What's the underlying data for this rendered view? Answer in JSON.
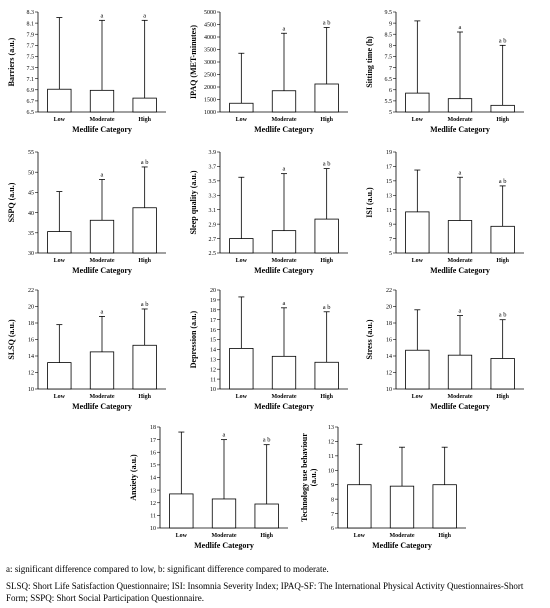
{
  "chart_data": [
    {
      "type": "bar",
      "title": "",
      "xlabel": "Medlife Category",
      "ylabel": "Barriers (a.u.)",
      "categories": [
        "Low",
        "Moderate",
        "High"
      ],
      "values": [
        6.91,
        6.89,
        6.75
      ],
      "error_upper": [
        8.2,
        8.15,
        8.15
      ],
      "ylim": [
        6.5,
        8.3
      ],
      "yticks": [
        "6.5",
        "6.7",
        "6.9",
        "7.1",
        "7.3",
        "7.5",
        "7.7",
        "7.9",
        "8.1",
        "8.3"
      ],
      "sig": [
        "",
        "a",
        "a"
      ]
    },
    {
      "type": "bar",
      "title": "",
      "xlabel": "Medlife Category",
      "ylabel": "IPAQ (MET-minutes)",
      "categories": [
        "Low",
        "Moderate",
        "High"
      ],
      "values": [
        1350,
        1850,
        2120
      ],
      "error_upper": [
        3350,
        4150,
        4380
      ],
      "ylim": [
        1000,
        5000
      ],
      "yticks": [
        "1000",
        "1500",
        "2000",
        "2500",
        "3000",
        "3500",
        "4000",
        "4500",
        "5000"
      ],
      "sig": [
        "",
        "a",
        "a b"
      ]
    },
    {
      "type": "bar",
      "title": "",
      "xlabel": "Medlife Category",
      "ylabel": "Sitting time (h)",
      "categories": [
        "Low",
        "Moderate",
        "High"
      ],
      "values": [
        5.85,
        5.6,
        5.3
      ],
      "error_upper": [
        9.1,
        8.6,
        8.0
      ],
      "ylim": [
        5,
        9.5
      ],
      "yticks": [
        "5",
        "5.5",
        "6",
        "6.5",
        "7",
        "7.5",
        "8",
        "8.5",
        "9",
        "9.5"
      ],
      "sig": [
        "",
        "a",
        "a b"
      ]
    },
    {
      "type": "bar",
      "title": "",
      "xlabel": "Medlife Category",
      "ylabel": "SSPQ (a.u.)",
      "categories": [
        "Low",
        "Moderate",
        "High"
      ],
      "values": [
        35.3,
        38.1,
        41.2
      ],
      "error_upper": [
        45.2,
        48.2,
        51.3
      ],
      "ylim": [
        30,
        55
      ],
      "yticks": [
        "30",
        "35",
        "40",
        "45",
        "50",
        "55"
      ],
      "sig": [
        "",
        "a",
        "a b"
      ]
    },
    {
      "type": "bar",
      "title": "",
      "xlabel": "Medlife Category",
      "ylabel": "Sleep quality (a.u.)",
      "categories": [
        "Low",
        "Moderate",
        "High"
      ],
      "values": [
        2.7,
        2.81,
        2.97
      ],
      "error_upper": [
        3.55,
        3.6,
        3.67
      ],
      "ylim": [
        2.5,
        3.9
      ],
      "yticks": [
        "2.5",
        "2.7",
        "2.9",
        "3.1",
        "3.3",
        "3.5",
        "3.7",
        "3.9"
      ],
      "sig": [
        "",
        "a",
        "a b"
      ]
    },
    {
      "type": "bar",
      "title": "",
      "xlabel": "Medlife Category",
      "ylabel": "ISI (a.u.)",
      "categories": [
        "Low",
        "Moderate",
        "High"
      ],
      "values": [
        10.7,
        9.5,
        8.7
      ],
      "error_upper": [
        16.5,
        15.5,
        14.3
      ],
      "ylim": [
        5,
        19
      ],
      "yticks": [
        "5",
        "7",
        "9",
        "11",
        "13",
        "15",
        "17",
        "19"
      ],
      "sig": [
        "",
        "a",
        "a b"
      ]
    },
    {
      "type": "bar",
      "title": "",
      "xlabel": "Medlife Category",
      "ylabel": "SLSQ (a.u.)",
      "categories": [
        "Low",
        "Moderate",
        "High"
      ],
      "values": [
        13.2,
        14.5,
        15.3
      ],
      "error_upper": [
        17.8,
        18.8,
        19.7
      ],
      "ylim": [
        10,
        22
      ],
      "yticks": [
        "10",
        "12",
        "14",
        "16",
        "18",
        "20",
        "22"
      ],
      "sig": [
        "",
        "a",
        "a b"
      ]
    },
    {
      "type": "bar",
      "title": "",
      "xlabel": "Medlife Category",
      "ylabel": "Depression (a.u.)",
      "categories": [
        "Low",
        "Moderate",
        "High"
      ],
      "values": [
        14.1,
        13.3,
        12.7
      ],
      "error_upper": [
        19.3,
        18.2,
        17.8
      ],
      "ylim": [
        10,
        20
      ],
      "yticks": [
        "10",
        "11",
        "12",
        "13",
        "14",
        "15",
        "16",
        "17",
        "18",
        "19",
        "20"
      ],
      "sig": [
        "",
        "a",
        "a b"
      ]
    },
    {
      "type": "bar",
      "title": "",
      "xlabel": "Medlife Category",
      "ylabel": "Stress (a.u.)",
      "categories": [
        "Low",
        "Moderate",
        "High"
      ],
      "values": [
        14.7,
        14.1,
        13.7
      ],
      "error_upper": [
        19.6,
        18.9,
        18.4
      ],
      "ylim": [
        10,
        22
      ],
      "yticks": [
        "10",
        "12",
        "14",
        "16",
        "18",
        "20",
        "22"
      ],
      "sig": [
        "",
        "a",
        "a b"
      ]
    },
    {
      "type": "bar",
      "title": "",
      "xlabel": "Medlife Category",
      "ylabel": "Anxiety (a.u.)",
      "categories": [
        "Low",
        "Moderate",
        "High"
      ],
      "values": [
        12.7,
        12.3,
        11.9
      ],
      "error_upper": [
        17.6,
        17.0,
        16.6
      ],
      "ylim": [
        10,
        18
      ],
      "yticks": [
        "10",
        "11",
        "12",
        "13",
        "14",
        "15",
        "16",
        "17",
        "18"
      ],
      "sig": [
        "",
        "a",
        "a b"
      ]
    },
    {
      "type": "bar",
      "title": "",
      "xlabel": "Medlife Category",
      "ylabel": "Technology use behaviour (a.u.)",
      "categories": [
        "Low",
        "Moderate",
        "High"
      ],
      "values": [
        9.0,
        8.9,
        9.0
      ],
      "error_upper": [
        11.8,
        11.6,
        11.6
      ],
      "ylim": [
        6,
        13
      ],
      "yticks": [
        "6",
        "7",
        "8",
        "9",
        "10",
        "11",
        "12",
        "13"
      ],
      "sig": [
        "",
        "",
        ""
      ]
    }
  ],
  "captions": {
    "significance": "a: significant difference compared to low, b: significant difference compared to moderate.",
    "abbreviations": "SLSQ: Short Life Satisfaction Questionnaire; ISI: Insomnia Severity Index; IPAQ-SF: The International Physical Activity Questionnaires-Short Form; SSPQ: Short Social Participation Questionnaire."
  }
}
